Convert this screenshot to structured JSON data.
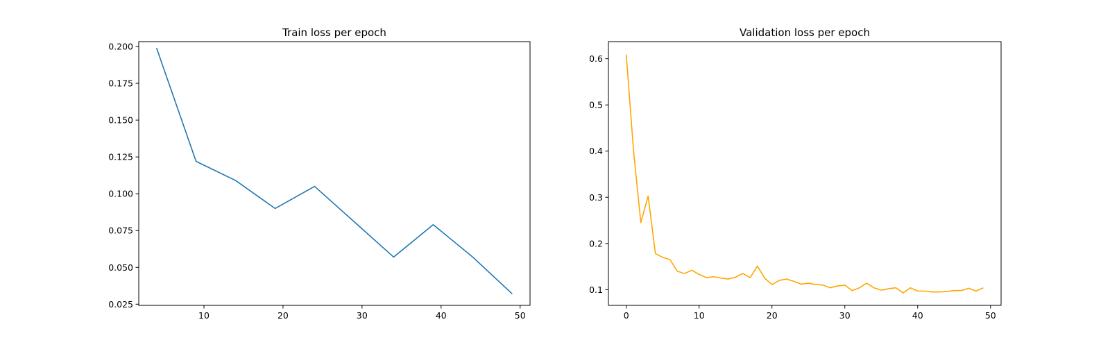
{
  "chart_data": [
    {
      "type": "line",
      "title": "Train loss per epoch",
      "xlabel": "",
      "ylabel": "",
      "xlim": [
        1.75,
        51.25
      ],
      "ylim": [
        0.0242,
        0.2033
      ],
      "xticks": [
        10,
        20,
        30,
        40,
        50
      ],
      "xtick_labels": [
        "10",
        "20",
        "30",
        "40",
        "50"
      ],
      "yticks": [
        0.025,
        0.05,
        0.075,
        0.1,
        0.125,
        0.15,
        0.175,
        0.2
      ],
      "ytick_labels": [
        "0.025",
        "0.050",
        "0.075",
        "0.100",
        "0.125",
        "0.150",
        "0.175",
        "0.200"
      ],
      "grid": false,
      "series": [
        {
          "color": "#1f77b4",
          "x": [
            4,
            9,
            14,
            19,
            24,
            29,
            34,
            39,
            44,
            49
          ],
          "y": [
            0.199,
            0.122,
            0.109,
            0.09,
            0.105,
            0.081,
            0.057,
            0.079,
            0.057,
            0.032
          ]
        }
      ]
    },
    {
      "type": "line",
      "title": "Validation loss per epoch",
      "xlabel": "",
      "ylabel": "",
      "xlim": [
        -2.45,
        51.45
      ],
      "ylim": [
        0.066,
        0.637
      ],
      "xticks": [
        0,
        10,
        20,
        30,
        40,
        50
      ],
      "xtick_labels": [
        "0",
        "10",
        "20",
        "30",
        "40",
        "50"
      ],
      "yticks": [
        0.1,
        0.2,
        0.3,
        0.4,
        0.5,
        0.6
      ],
      "ytick_labels": [
        "0.1",
        "0.2",
        "0.3",
        "0.4",
        "0.5",
        "0.6"
      ],
      "grid": false,
      "series": [
        {
          "color": "#ffa500",
          "x": [
            0,
            1,
            2,
            3,
            4,
            5,
            6,
            7,
            8,
            9,
            10,
            11,
            12,
            13,
            14,
            15,
            16,
            17,
            18,
            19,
            20,
            21,
            22,
            23,
            24,
            25,
            26,
            27,
            28,
            29,
            30,
            31,
            32,
            33,
            34,
            35,
            36,
            37,
            38,
            39,
            40,
            41,
            42,
            43,
            44,
            45,
            46,
            47,
            48,
            49
          ],
          "y": [
            0.609,
            0.4,
            0.245,
            0.303,
            0.178,
            0.17,
            0.165,
            0.14,
            0.135,
            0.142,
            0.133,
            0.126,
            0.128,
            0.125,
            0.123,
            0.127,
            0.135,
            0.126,
            0.151,
            0.125,
            0.111,
            0.12,
            0.123,
            0.118,
            0.112,
            0.114,
            0.111,
            0.11,
            0.104,
            0.108,
            0.11,
            0.098,
            0.104,
            0.114,
            0.104,
            0.099,
            0.102,
            0.104,
            0.093,
            0.104,
            0.097,
            0.097,
            0.095,
            0.095,
            0.096,
            0.098,
            0.098,
            0.103,
            0.097,
            0.104
          ]
        }
      ]
    }
  ]
}
